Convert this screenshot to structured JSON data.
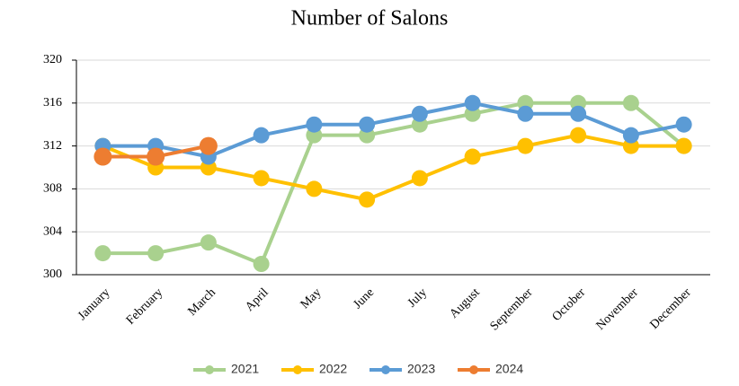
{
  "chart_data": {
    "type": "line",
    "title": "Number of Salons",
    "categories": [
      "January",
      "February",
      "March",
      "April",
      "May",
      "June",
      "July",
      "August",
      "September",
      "October",
      "November",
      "December"
    ],
    "series": [
      {
        "name": "2021",
        "color": "#a9d18e",
        "values": [
          302,
          302,
          303,
          301,
          313,
          313,
          314,
          315,
          316,
          316,
          316,
          312
        ]
      },
      {
        "name": "2022",
        "color": "#ffc000",
        "values": [
          312,
          310,
          310,
          309,
          308,
          307,
          309,
          311,
          312,
          313,
          312,
          312
        ]
      },
      {
        "name": "2023",
        "color": "#5b9bd5",
        "values": [
          312,
          312,
          311,
          313,
          314,
          314,
          315,
          316,
          315,
          315,
          313,
          314
        ]
      },
      {
        "name": "2024",
        "color": "#ed7d31",
        "values": [
          311,
          311,
          312,
          null,
          null,
          null,
          null,
          null,
          null,
          null,
          null,
          null
        ]
      }
    ],
    "ylim": [
      300,
      320
    ],
    "yticks": [
      300,
      304,
      308,
      312,
      316,
      320
    ],
    "grid": true,
    "legend": "bottom"
  }
}
